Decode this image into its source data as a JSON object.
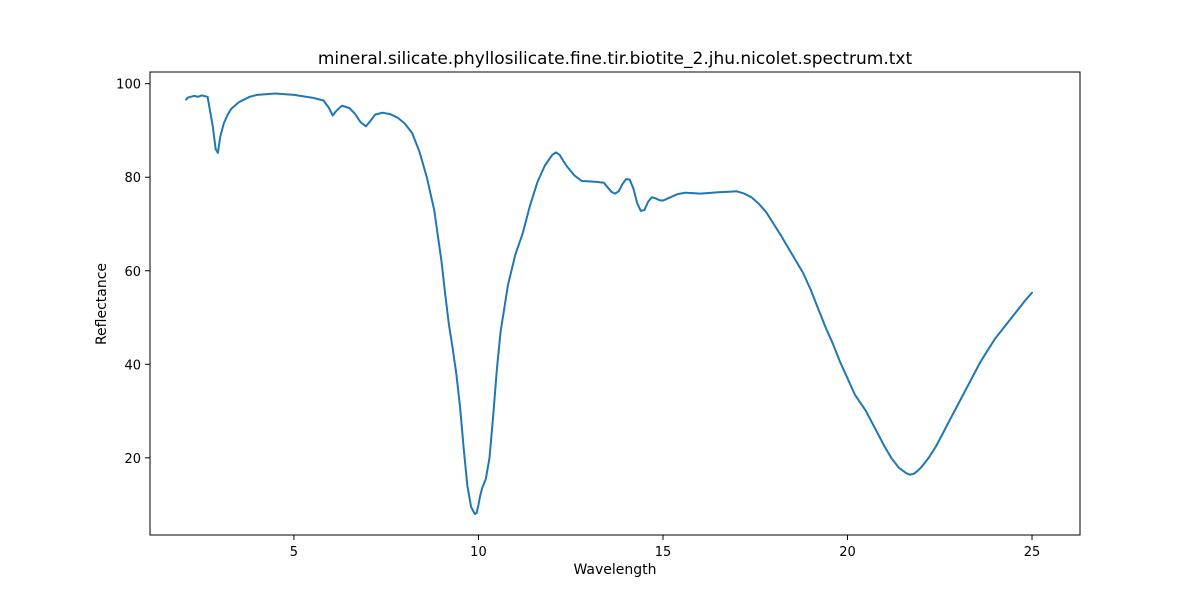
{
  "chart_data": {
    "type": "line",
    "title": "mineral.silicate.phyllosilicate.fine.tir.biotite_2.jhu.nicolet.spectrum.txt",
    "xlabel": "Wavelength",
    "ylabel": "Reflectance",
    "xlim": [
      1.1,
      26.3
    ],
    "ylim": [
      3.5,
      102.5
    ],
    "xticks": [
      5,
      10,
      15,
      20,
      25
    ],
    "yticks": [
      20,
      40,
      60,
      80,
      100
    ],
    "grid": false,
    "legend": "none",
    "series": [
      {
        "color": "#1f77b4",
        "x": [
          2.08,
          2.12,
          2.2,
          2.3,
          2.4,
          2.5,
          2.6,
          2.66,
          2.72,
          2.8,
          2.88,
          2.94,
          3.0,
          3.1,
          3.2,
          3.3,
          3.5,
          3.8,
          4.0,
          4.5,
          5.0,
          5.5,
          5.8,
          5.95,
          6.05,
          6.15,
          6.3,
          6.5,
          6.65,
          6.8,
          6.95,
          7.05,
          7.2,
          7.4,
          7.6,
          7.8,
          8.0,
          8.2,
          8.4,
          8.6,
          8.8,
          9.0,
          9.1,
          9.2,
          9.3,
          9.4,
          9.5,
          9.6,
          9.7,
          9.8,
          9.9,
          9.95,
          10.0,
          10.05,
          10.1,
          10.2,
          10.3,
          10.4,
          10.5,
          10.6,
          10.8,
          11.0,
          11.2,
          11.4,
          11.6,
          11.8,
          12.0,
          12.1,
          12.2,
          12.3,
          12.4,
          12.6,
          12.8,
          13.0,
          13.2,
          13.4,
          13.6,
          13.7,
          13.8,
          13.9,
          14.0,
          14.1,
          14.2,
          14.3,
          14.4,
          14.5,
          14.6,
          14.7,
          14.8,
          14.9,
          15.0,
          15.2,
          15.4,
          15.6,
          15.8,
          16.0,
          16.2,
          16.5,
          16.8,
          17.0,
          17.2,
          17.4,
          17.6,
          17.8,
          18.0,
          18.2,
          18.5,
          18.8,
          19.0,
          19.2,
          19.4,
          19.6,
          19.8,
          20.0,
          20.2,
          20.5,
          20.8,
          21.0,
          21.2,
          21.4,
          21.6,
          21.7,
          21.8,
          21.9,
          22.0,
          22.2,
          22.4,
          22.6,
          22.8,
          23.0,
          23.2,
          23.4,
          23.6,
          23.8,
          24.0,
          24.2,
          24.4,
          24.6,
          24.8,
          25.0
        ],
        "y": [
          96.6,
          97.0,
          97.2,
          97.4,
          97.2,
          97.5,
          97.3,
          97.2,
          94.5,
          91.0,
          86.0,
          85.2,
          88.5,
          91.5,
          93.3,
          94.6,
          96.0,
          97.2,
          97.6,
          97.9,
          97.6,
          97.0,
          96.4,
          94.8,
          93.2,
          94.2,
          95.3,
          94.8,
          93.6,
          91.8,
          90.9,
          91.8,
          93.4,
          93.8,
          93.5,
          92.8,
          91.5,
          89.5,
          85.5,
          80.0,
          73.0,
          62.0,
          55.0,
          48.5,
          43.5,
          38.0,
          31.0,
          22.0,
          14.0,
          9.5,
          8.0,
          8.2,
          10.0,
          12.0,
          13.5,
          15.5,
          20.0,
          29.0,
          39.0,
          47.0,
          57.0,
          63.5,
          68.0,
          74.0,
          79.0,
          82.5,
          84.8,
          85.3,
          84.8,
          83.5,
          82.3,
          80.4,
          79.2,
          79.1,
          79.0,
          78.8,
          76.9,
          76.5,
          77.0,
          78.5,
          79.6,
          79.5,
          77.5,
          74.5,
          72.8,
          73.0,
          74.8,
          75.7,
          75.5,
          75.1,
          75.0,
          75.7,
          76.4,
          76.7,
          76.6,
          76.5,
          76.6,
          76.8,
          76.9,
          77.0,
          76.5,
          75.7,
          74.3,
          72.5,
          70.0,
          67.5,
          63.5,
          59.5,
          56.0,
          52.0,
          48.0,
          44.5,
          40.5,
          37.0,
          33.5,
          30.0,
          25.5,
          22.5,
          19.8,
          17.8,
          16.7,
          16.4,
          16.6,
          17.2,
          18.0,
          20.0,
          22.5,
          25.5,
          28.5,
          31.5,
          34.5,
          37.5,
          40.5,
          43.0,
          45.5,
          47.5,
          49.5,
          51.5,
          53.5,
          55.3
        ]
      }
    ]
  }
}
